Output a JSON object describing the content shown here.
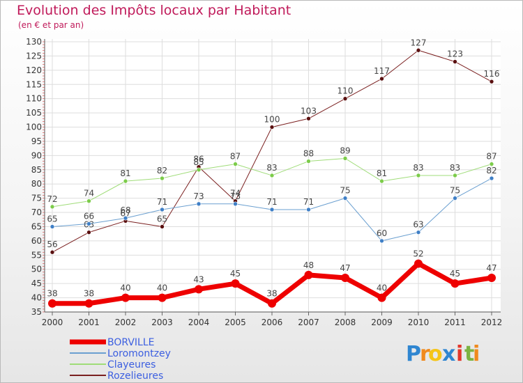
{
  "title": "Evolution des Impôts locaux par Habitant",
  "subtitle": "(en € et par an)",
  "logo": {
    "text": "Proxiti",
    "letters": [
      "P",
      "r",
      "o",
      "x",
      "i",
      "t",
      "i"
    ],
    "colors": [
      "#2f86d1",
      "#f08a1d",
      "#f5c518",
      "#2f86d1",
      "#e3372b",
      "#7cb342",
      "#f08a1d"
    ]
  },
  "chart_data": {
    "type": "line",
    "title": "Evolution des Impôts locaux par Habitant",
    "subtitle": "(en € et par an)",
    "xlabel": "",
    "ylabel": "",
    "ylim": [
      35,
      130
    ],
    "ytick_step": 5,
    "yticks": [
      "35",
      "40",
      "45",
      "50",
      "55",
      "60",
      "65",
      "70",
      "75",
      "80",
      "85",
      "90",
      "95",
      "100",
      "105",
      "110",
      "115",
      "120",
      "125",
      "130"
    ],
    "categories": [
      "2000",
      "2001",
      "2002",
      "2003",
      "2004",
      "2005",
      "2006",
      "2007",
      "2008",
      "2009",
      "2010",
      "2011",
      "2012"
    ],
    "legend_position": "bottom-left",
    "series": [
      {
        "name": "Rozelieures",
        "color": "#7a1f1f",
        "marker": "#5a1010",
        "width": 1,
        "values": [
          56,
          63,
          67,
          65,
          86,
          74,
          100,
          103,
          110,
          117,
          127,
          123,
          116
        ]
      },
      {
        "name": "Clayeures",
        "color": "#9fdc78",
        "marker": "#7ccc4a",
        "width": 1,
        "values": [
          72,
          74,
          81,
          82,
          85,
          87,
          83,
          88,
          89,
          81,
          83,
          83,
          87
        ]
      },
      {
        "name": "Loromontzey",
        "color": "#6a9fd0",
        "marker": "#3f7fc6",
        "width": 1,
        "values": [
          65,
          66,
          68,
          71,
          73,
          73,
          71,
          71,
          75,
          60,
          63,
          75,
          82
        ]
      },
      {
        "name": "BORVILLE",
        "color": "#ee0000",
        "marker": "#ee0000",
        "width": 7,
        "values": [
          38,
          38,
          40,
          40,
          43,
          45,
          38,
          48,
          47,
          40,
          52,
          45,
          47
        ]
      }
    ],
    "legend": [
      "BORVILLE",
      "Loromontzey",
      "Clayeures",
      "Rozelieures"
    ]
  }
}
